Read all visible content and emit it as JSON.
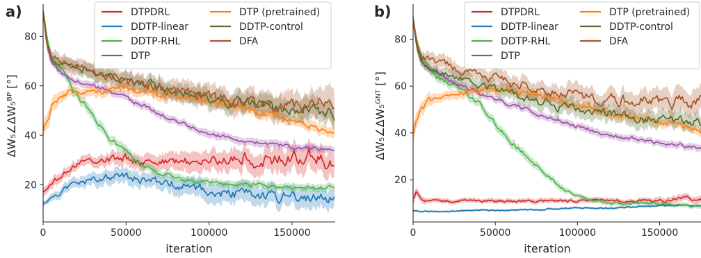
{
  "chart_data": [
    {
      "panel": "a)",
      "type": "line",
      "xlabel": "iteration",
      "ylabel": "ΔW₅∠ΔW₅ᴮᴾ [°]",
      "xlim": [
        0,
        176000
      ],
      "ylim": [
        5,
        93
      ],
      "xticks": [
        0,
        50000,
        100000,
        150000
      ],
      "xtick_labels": [
        "0",
        "50000",
        "100000",
        "150000"
      ],
      "yticks": [
        20,
        40,
        60,
        80
      ],
      "ytick_labels": [
        "20",
        "40",
        "60",
        "80"
      ],
      "grid": false,
      "legend_position": "top-right",
      "legend_columns": 2,
      "series": [
        {
          "name": "DTPDRL",
          "color": "#d62728",
          "x": [
            0,
            5000,
            10000,
            15000,
            20000,
            25000,
            30000,
            40000,
            50000,
            60000,
            70000,
            80000,
            90000,
            100000,
            110000,
            120000,
            130000,
            140000,
            150000,
            160000,
            170000,
            176000
          ],
          "y": [
            17,
            20,
            23,
            26,
            28,
            30,
            30,
            30,
            31,
            29,
            30,
            29,
            30,
            29,
            30,
            31,
            29,
            30,
            31,
            32,
            29,
            27
          ],
          "spread": [
            1.5,
            2,
            2,
            2,
            2,
            2,
            2,
            2.5,
            3,
            3,
            3,
            3.5,
            4,
            4,
            4,
            4.5,
            4.5,
            5,
            5,
            5,
            5,
            5
          ]
        },
        {
          "name": "DDTP-linear",
          "color": "#1f77b4",
          "x": [
            0,
            5000,
            10000,
            15000,
            20000,
            30000,
            40000,
            50000,
            60000,
            70000,
            80000,
            90000,
            100000,
            110000,
            120000,
            130000,
            140000,
            150000,
            160000,
            170000,
            176000
          ],
          "y": [
            12,
            15,
            17,
            19,
            20,
            22,
            23,
            23,
            22,
            21,
            20,
            19,
            18,
            17,
            16,
            16,
            15,
            15,
            15,
            15,
            14
          ],
          "spread": [
            1,
            1.5,
            2,
            2,
            2,
            2.5,
            3,
            3,
            3,
            3,
            3.5,
            3.5,
            4,
            4,
            4,
            4,
            4,
            4,
            4,
            4,
            4
          ]
        },
        {
          "name": "DDTP-RHL",
          "color": "#4daf4a",
          "x": [
            0,
            2000,
            5000,
            10000,
            15000,
            20000,
            30000,
            40000,
            50000,
            60000,
            70000,
            80000,
            90000,
            100000,
            110000,
            120000,
            130000,
            140000,
            150000,
            160000,
            170000,
            176000
          ],
          "y": [
            90,
            80,
            72,
            67,
            62,
            57,
            48,
            39,
            33,
            28,
            25,
            23,
            21,
            21,
            20,
            20,
            20,
            19,
            19,
            19,
            19,
            19
          ],
          "spread": [
            2,
            2,
            2,
            2,
            2,
            2,
            2,
            2,
            2,
            1.5,
            1.5,
            1.5,
            1.5,
            1.5,
            1.5,
            1.5,
            1.5,
            1.5,
            1.5,
            1.5,
            1.5,
            1.5
          ]
        },
        {
          "name": "DTP",
          "color": "#984ea3",
          "x": [
            0,
            2000,
            5000,
            10000,
            15000,
            20000,
            30000,
            40000,
            50000,
            60000,
            70000,
            80000,
            90000,
            100000,
            110000,
            120000,
            130000,
            140000,
            150000,
            160000,
            170000,
            176000
          ],
          "y": [
            90,
            78,
            70,
            66,
            64,
            62,
            60,
            58,
            55,
            52,
            49,
            46,
            43,
            41,
            39,
            38,
            37,
            36,
            35,
            35,
            34,
            34
          ],
          "spread": [
            2,
            2,
            1.5,
            1.5,
            1.5,
            1.5,
            1.5,
            1.5,
            1.5,
            1.5,
            1.5,
            1.5,
            1.5,
            1.5,
            1.5,
            1.5,
            1.5,
            1.5,
            1.5,
            1.5,
            1.5,
            1.5
          ]
        },
        {
          "name": "DTP (pretrained)",
          "color": "#ff7f0e",
          "x": [
            0,
            2000,
            5000,
            10000,
            15000,
            20000,
            30000,
            40000,
            50000,
            60000,
            70000,
            80000,
            90000,
            100000,
            110000,
            120000,
            130000,
            140000,
            150000,
            160000,
            170000,
            176000
          ],
          "y": [
            41,
            46,
            51,
            55,
            57,
            57,
            58,
            58,
            59,
            58,
            57,
            56,
            55,
            54,
            52,
            51,
            49,
            48,
            46,
            44,
            42,
            41
          ],
          "spread": [
            4,
            3,
            3,
            2.5,
            2,
            2,
            2,
            2,
            2,
            2,
            2,
            2,
            2,
            2,
            2,
            2,
            2,
            2,
            2,
            2,
            2,
            2
          ]
        },
        {
          "name": "DDTP-control",
          "color": "#556b2f",
          "x": [
            0,
            2000,
            5000,
            10000,
            15000,
            20000,
            30000,
            40000,
            50000,
            60000,
            70000,
            80000,
            90000,
            100000,
            110000,
            120000,
            130000,
            140000,
            150000,
            160000,
            170000,
            176000
          ],
          "y": [
            90,
            78,
            71,
            69,
            68,
            67,
            66,
            64,
            62,
            61,
            60,
            58,
            57,
            55,
            54,
            53,
            53,
            52,
            51,
            50,
            49,
            48
          ],
          "spread": [
            2,
            2,
            2,
            2,
            2.5,
            2.5,
            3,
            3,
            3,
            3,
            3,
            3.5,
            3.5,
            4,
            4,
            4,
            4,
            4.5,
            4.5,
            4.5,
            4.5,
            4.5
          ]
        },
        {
          "name": "DFA",
          "color": "#a65628",
          "x": [
            0,
            2000,
            5000,
            10000,
            15000,
            20000,
            30000,
            40000,
            50000,
            60000,
            70000,
            80000,
            90000,
            100000,
            110000,
            120000,
            130000,
            140000,
            150000,
            160000,
            170000,
            176000
          ],
          "y": [
            90,
            78,
            72,
            70,
            69,
            68,
            66,
            64,
            62,
            60,
            59,
            58,
            57,
            55,
            54,
            54,
            53,
            52,
            52,
            52,
            52,
            53
          ],
          "spread": [
            2,
            2,
            2.5,
            3,
            3,
            3,
            3,
            3.5,
            3.5,
            3.5,
            4,
            4,
            4,
            4,
            4.5,
            4.5,
            4.5,
            5,
            5,
            5,
            6,
            8
          ]
        }
      ]
    },
    {
      "panel": "b)",
      "type": "line",
      "xlabel": "iteration",
      "ylabel": "ΔW₅∠ΔW₅ᴳᴺᵀ [°]",
      "xlim": [
        0,
        176000
      ],
      "ylim": [
        2,
        95
      ],
      "xticks": [
        0,
        50000,
        100000,
        150000
      ],
      "xtick_labels": [
        "0",
        "50000",
        "100000",
        "150000"
      ],
      "yticks": [
        20,
        40,
        60,
        80
      ],
      "ytick_labels": [
        "20",
        "40",
        "60",
        "80"
      ],
      "grid": false,
      "legend_position": "top-right",
      "legend_columns": 2,
      "series": [
        {
          "name": "DTPDRL",
          "color": "#d62728",
          "x": [
            0,
            2000,
            5000,
            10000,
            20000,
            40000,
            60000,
            80000,
            100000,
            120000,
            140000,
            150000,
            160000,
            170000,
            176000
          ],
          "y": [
            13,
            15,
            12,
            11,
            11,
            11,
            11,
            11,
            11,
            11,
            11,
            11,
            12,
            12,
            12
          ],
          "spread": [
            2,
            2,
            1.5,
            1,
            1,
            1,
            1,
            1,
            1,
            1,
            1,
            1.5,
            1.5,
            1.5,
            1.5
          ]
        },
        {
          "name": "DDTP-linear",
          "color": "#1f77b4",
          "x": [
            0,
            5000,
            10000,
            20000,
            40000,
            60000,
            80000,
            100000,
            120000,
            140000,
            160000,
            176000
          ],
          "y": [
            7,
            6.5,
            6.5,
            6.5,
            7,
            7,
            7.5,
            8,
            8,
            8.5,
            9,
            9
          ],
          "spread": [
            0.5,
            0.5,
            0.5,
            0.5,
            0.5,
            0.5,
            0.5,
            0.5,
            0.5,
            0.5,
            0.5,
            0.5
          ]
        },
        {
          "name": "DDTP-RHL",
          "color": "#4daf4a",
          "x": [
            0,
            2000,
            5000,
            10000,
            15000,
            20000,
            30000,
            40000,
            50000,
            60000,
            70000,
            80000,
            90000,
            100000,
            110000,
            120000,
            130000,
            140000,
            150000,
            160000,
            170000,
            176000
          ],
          "y": [
            90,
            80,
            73,
            68,
            64,
            62,
            58,
            53,
            44,
            36,
            29,
            23,
            17,
            13,
            11,
            10,
            10,
            10,
            10,
            9,
            9,
            9
          ],
          "spread": [
            2,
            2,
            2,
            2,
            2,
            2,
            2,
            2,
            2,
            2,
            2,
            1.5,
            1.5,
            1,
            1,
            1,
            1,
            1,
            1,
            1,
            1,
            1
          ]
        },
        {
          "name": "DTP",
          "color": "#984ea3",
          "x": [
            0,
            2000,
            5000,
            10000,
            15000,
            20000,
            30000,
            40000,
            50000,
            60000,
            70000,
            80000,
            90000,
            100000,
            110000,
            120000,
            130000,
            140000,
            150000,
            160000,
            170000,
            176000
          ],
          "y": [
            90,
            78,
            70,
            67,
            65,
            63,
            60,
            57,
            55,
            52,
            50,
            47,
            45,
            43,
            41,
            39,
            38,
            37,
            36,
            35,
            34,
            34
          ],
          "spread": [
            2,
            2,
            1.5,
            1.5,
            1.5,
            1.5,
            1.5,
            1.5,
            1.5,
            1.5,
            1.5,
            1.5,
            1.5,
            1.5,
            1.5,
            1.5,
            1.5,
            1.5,
            1.5,
            1.5,
            1.5,
            1.5
          ]
        },
        {
          "name": "DTP (pretrained)",
          "color": "#ff7f0e",
          "x": [
            0,
            2000,
            5000,
            10000,
            15000,
            20000,
            30000,
            40000,
            50000,
            60000,
            70000,
            80000,
            90000,
            100000,
            110000,
            120000,
            130000,
            140000,
            150000,
            160000,
            170000,
            176000
          ],
          "y": [
            41,
            46,
            50,
            54,
            55,
            56,
            57,
            58,
            59,
            58,
            57,
            55,
            53,
            51,
            50,
            48,
            47,
            46,
            45,
            44,
            42,
            41
          ],
          "spread": [
            4,
            3,
            3,
            2.5,
            2,
            2,
            2,
            2,
            2,
            2,
            2,
            2,
            2,
            2,
            2,
            2,
            2,
            2,
            2,
            2,
            2,
            2
          ]
        },
        {
          "name": "DDTP-control",
          "color": "#556b2f",
          "x": [
            0,
            2000,
            5000,
            10000,
            15000,
            20000,
            30000,
            40000,
            50000,
            60000,
            70000,
            80000,
            90000,
            100000,
            110000,
            120000,
            130000,
            140000,
            150000,
            160000,
            170000,
            176000
          ],
          "y": [
            90,
            78,
            70,
            67,
            66,
            65,
            63,
            61,
            59,
            57,
            55,
            53,
            51,
            50,
            49,
            48,
            47,
            46,
            46,
            45,
            45,
            44
          ],
          "spread": [
            2,
            2,
            2,
            2,
            2.5,
            2.5,
            3,
            3,
            3,
            3,
            3,
            3.5,
            3.5,
            3.5,
            3.5,
            3.5,
            3.5,
            3.5,
            3.5,
            3.5,
            3.5,
            3.5
          ]
        },
        {
          "name": "DFA",
          "color": "#a65628",
          "x": [
            0,
            2000,
            5000,
            10000,
            15000,
            20000,
            30000,
            40000,
            50000,
            60000,
            70000,
            80000,
            90000,
            100000,
            110000,
            120000,
            130000,
            140000,
            150000,
            160000,
            170000,
            176000
          ],
          "y": [
            90,
            80,
            73,
            71,
            70,
            69,
            67,
            65,
            63,
            61,
            60,
            58,
            57,
            56,
            55,
            55,
            54,
            54,
            54,
            53,
            53,
            53
          ],
          "spread": [
            2,
            2,
            2.5,
            3,
            3,
            3,
            3,
            3,
            3.5,
            3.5,
            3.5,
            3.5,
            4,
            4,
            4,
            4,
            4.5,
            4.5,
            4.5,
            5,
            5,
            6
          ]
        }
      ]
    }
  ]
}
